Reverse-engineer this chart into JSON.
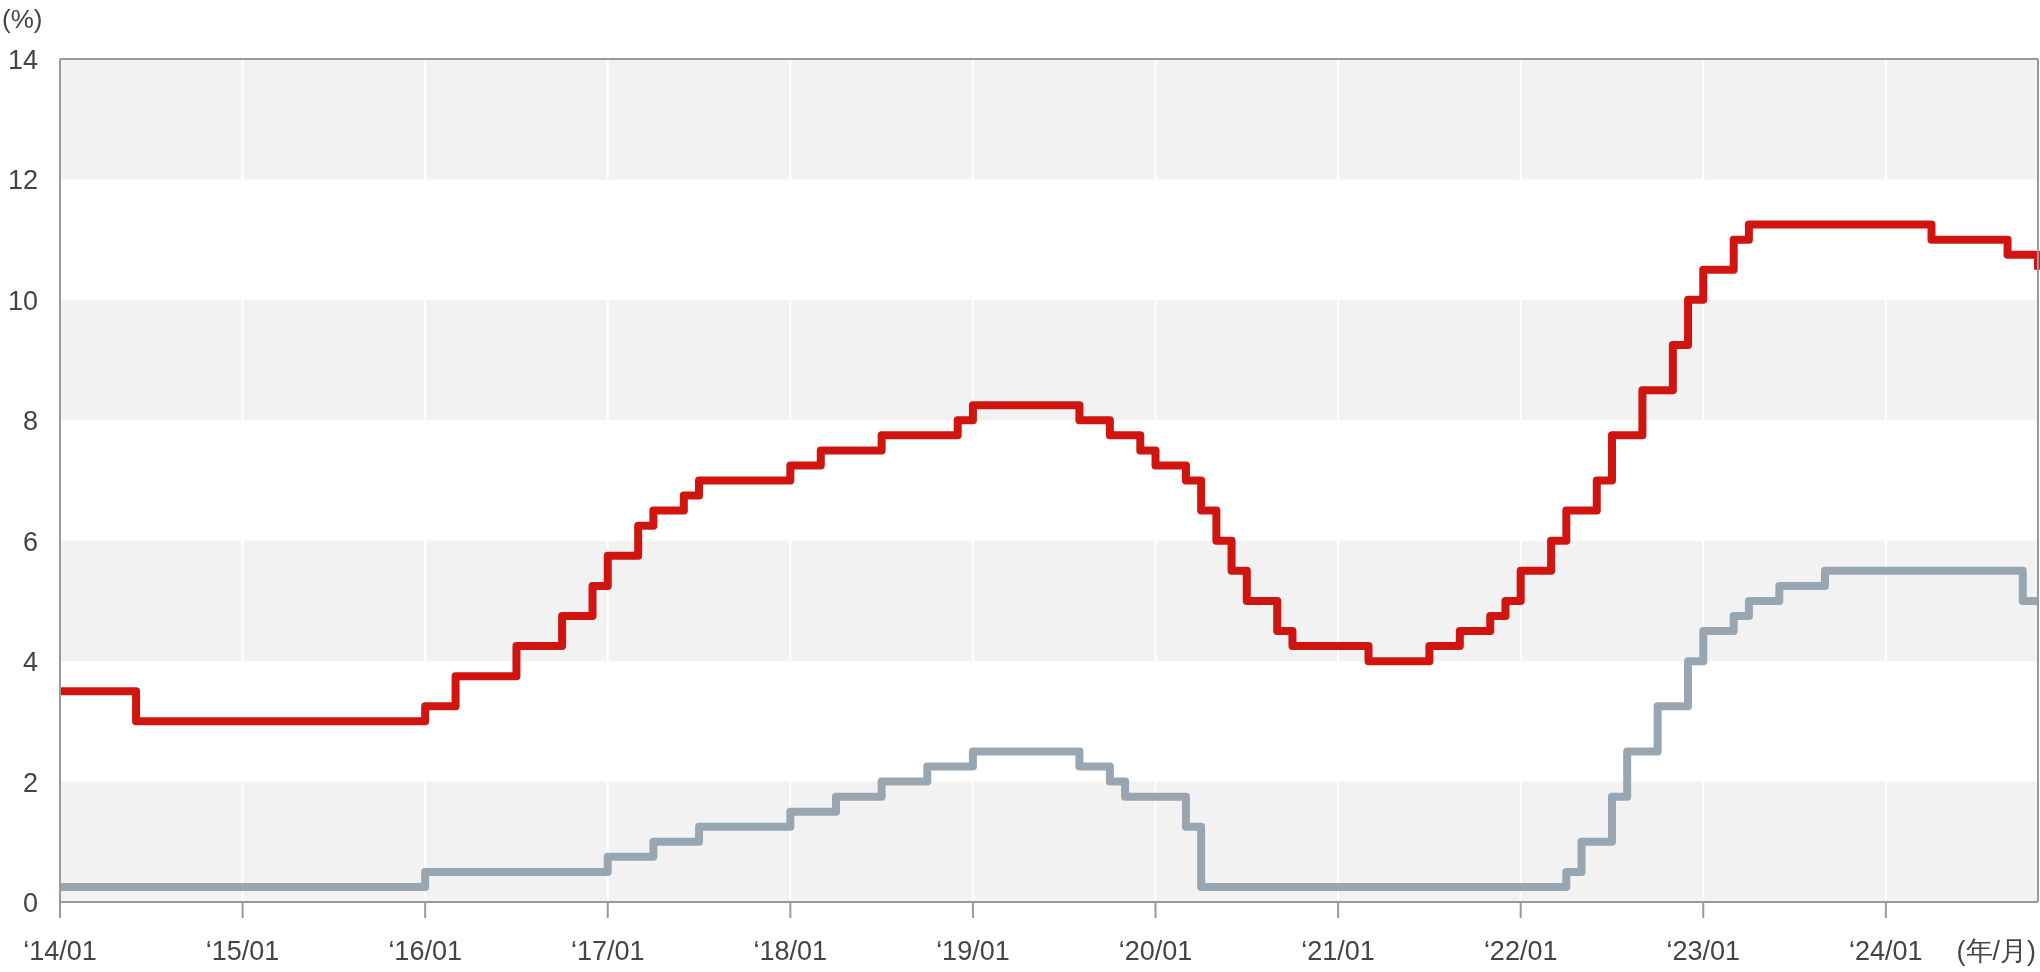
{
  "chart_data": {
    "type": "step",
    "ylabel": "(%)",
    "xlabel": "(年/月)",
    "xlim": [
      "2014-01",
      "2024-11"
    ],
    "ylim": [
      0,
      14
    ],
    "yticks": [
      0,
      2,
      4,
      6,
      8,
      10,
      12,
      14
    ],
    "xticks": [
      {
        "value": "2014-01",
        "label": "‘14/01"
      },
      {
        "value": "2015-01",
        "label": "‘15/01"
      },
      {
        "value": "2016-01",
        "label": "‘16/01"
      },
      {
        "value": "2017-01",
        "label": "‘17/01"
      },
      {
        "value": "2018-01",
        "label": "‘18/01"
      },
      {
        "value": "2019-01",
        "label": "‘19/01"
      },
      {
        "value": "2020-01",
        "label": "‘20/01"
      },
      {
        "value": "2021-01",
        "label": "‘21/01"
      },
      {
        "value": "2022-01",
        "label": "‘22/01"
      },
      {
        "value": "2023-01",
        "label": "‘23/01"
      },
      {
        "value": "2024-01",
        "label": "‘24/01"
      }
    ],
    "grid": "x",
    "line_style": "solid",
    "bands": [
      {
        "axis": "y",
        "from": 0,
        "to": 2,
        "color": "#f2f2f2"
      },
      {
        "axis": "y",
        "from": 4,
        "to": 6,
        "color": "#f2f2f2"
      },
      {
        "axis": "y",
        "from": 8,
        "to": 10,
        "color": "#f2f2f2"
      },
      {
        "axis": "y",
        "from": 12,
        "to": 14,
        "color": "#f2f2f2"
      }
    ],
    "series": [
      {
        "color": "#d0140f",
        "x": [
          "2014-01",
          "2014-06",
          "2016-01",
          "2016-03",
          "2016-07",
          "2016-10",
          "2016-12",
          "2017-01",
          "2017-03",
          "2017-04",
          "2017-06",
          "2017-07",
          "2018-01",
          "2018-03",
          "2018-07",
          "2018-12",
          "2019-01",
          "2019-08",
          "2019-10",
          "2019-12",
          "2020-01",
          "2020-03",
          "2020-04",
          "2020-05",
          "2020-06",
          "2020-07",
          "2020-09",
          "2020-10",
          "2021-03",
          "2021-07",
          "2021-09",
          "2021-11",
          "2021-12",
          "2022-01",
          "2022-03",
          "2022-04",
          "2022-06",
          "2022-07",
          "2022-09",
          "2022-11",
          "2022-12",
          "2023-01",
          "2023-03",
          "2023-04",
          "2024-04",
          "2024-09",
          "2024-11"
        ],
        "values": [
          3.5,
          3.0,
          3.25,
          3.75,
          4.25,
          4.75,
          5.25,
          5.75,
          6.25,
          6.5,
          6.75,
          7.0,
          7.25,
          7.5,
          7.75,
          8.0,
          8.25,
          8.0,
          7.75,
          7.5,
          7.25,
          7.0,
          6.5,
          6.0,
          5.5,
          5.0,
          4.5,
          4.25,
          4.0,
          4.25,
          4.5,
          4.75,
          5.0,
          5.5,
          6.0,
          6.5,
          7.0,
          7.75,
          8.5,
          9.25,
          10.0,
          10.5,
          11.0,
          11.25,
          11.0,
          10.75,
          10.5
        ]
      },
      {
        "color": "#98a6b1",
        "x": [
          "2014-01",
          "2016-01",
          "2017-01",
          "2017-04",
          "2017-07",
          "2018-01",
          "2018-04",
          "2018-07",
          "2018-10",
          "2019-01",
          "2019-08",
          "2019-10",
          "2019-11",
          "2020-03",
          "2020-04",
          "2022-04",
          "2022-05",
          "2022-07",
          "2022-08",
          "2022-10",
          "2022-12",
          "2023-01",
          "2023-03",
          "2023-04",
          "2023-06",
          "2023-09",
          "2024-10",
          "2024-11"
        ],
        "values": [
          0.25,
          0.5,
          0.75,
          1.0,
          1.25,
          1.5,
          1.75,
          2.0,
          2.25,
          2.5,
          2.25,
          2.0,
          1.75,
          1.25,
          0.25,
          0.5,
          1.0,
          1.75,
          2.5,
          3.25,
          4.0,
          4.5,
          4.75,
          5.0,
          5.25,
          5.5,
          5.0,
          5.0
        ]
      }
    ]
  }
}
